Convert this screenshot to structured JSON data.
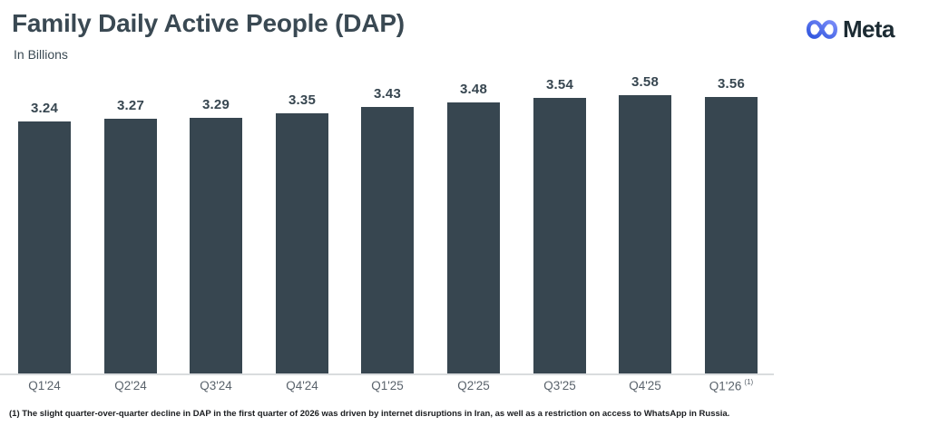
{
  "header": {
    "title": "Family Daily Active People (DAP)",
    "subtitle": "In Billions"
  },
  "logo": {
    "wordmark": "Meta",
    "icon": "meta-infinity-icon",
    "gradient_start": "#2F55DE",
    "gradient_end": "#7A8CF8",
    "wordmark_color": "#1C2B33"
  },
  "chart_data": {
    "type": "bar",
    "title": "Family Daily Active People (DAP)",
    "ylabel": "In Billions",
    "categories": [
      "Q1'24",
      "Q2'24",
      "Q3'24",
      "Q4'24",
      "Q1'25",
      "Q2'25",
      "Q3'25",
      "Q4'25",
      "Q1'26"
    ],
    "values": [
      3.24,
      3.27,
      3.29,
      3.35,
      3.43,
      3.48,
      3.54,
      3.58,
      3.56
    ],
    "value_labels": [
      "3.24",
      "3.27",
      "3.29",
      "3.35",
      "3.43",
      "3.48",
      "3.54",
      "3.58",
      "3.56"
    ],
    "last_category_marker": "(1)",
    "ylim": [
      0,
      3.58
    ],
    "grid": false,
    "legend": false,
    "bar_color": "#374650",
    "value_label_color": "#374650",
    "tick_label_color": "#5A636C",
    "axis_line_color": "#D9DCDE"
  },
  "footnote": "(1) The slight quarter-over-quarter decline in DAP in the first quarter of 2026 was driven by internet disruptions in Iran, as well as a restriction on access to WhatsApp in Russia."
}
